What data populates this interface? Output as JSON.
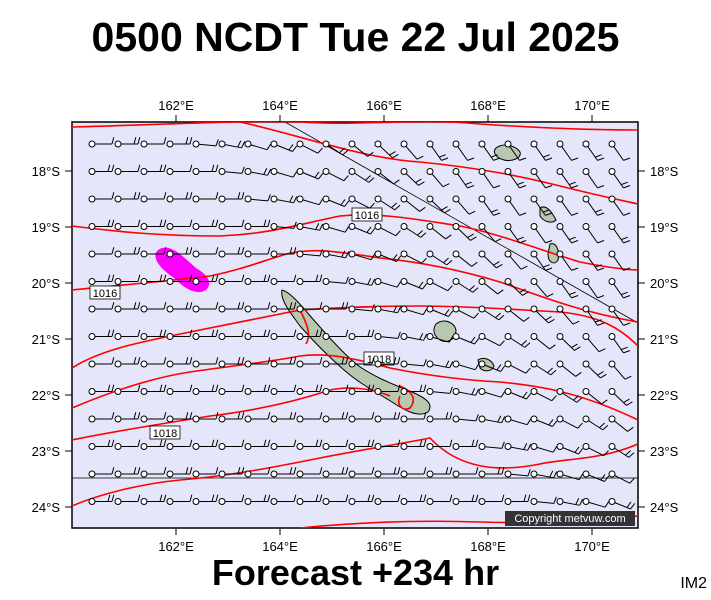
{
  "header": {
    "title": "0500 NCDT Tue 22 Jul 2025"
  },
  "footer": {
    "forecast": "Forecast +234 hr",
    "panel_id": "IM2"
  },
  "map": {
    "lon_labels": [
      "162°E",
      "164°E",
      "166°E",
      "168°E",
      "170°E"
    ],
    "lat_labels": [
      "18°S",
      "19°S",
      "20°S",
      "21°S",
      "22°S",
      "23°S",
      "24°S"
    ],
    "isobar_labels": [
      "1016",
      "1016",
      "1018",
      "1018"
    ],
    "copyright": "Copyright metvuw.com",
    "colors": {
      "ocean": "#e6e6fa",
      "isobar": "#ff0000",
      "rain": "#ff00ff",
      "land": "#b8c8b0"
    }
  }
}
